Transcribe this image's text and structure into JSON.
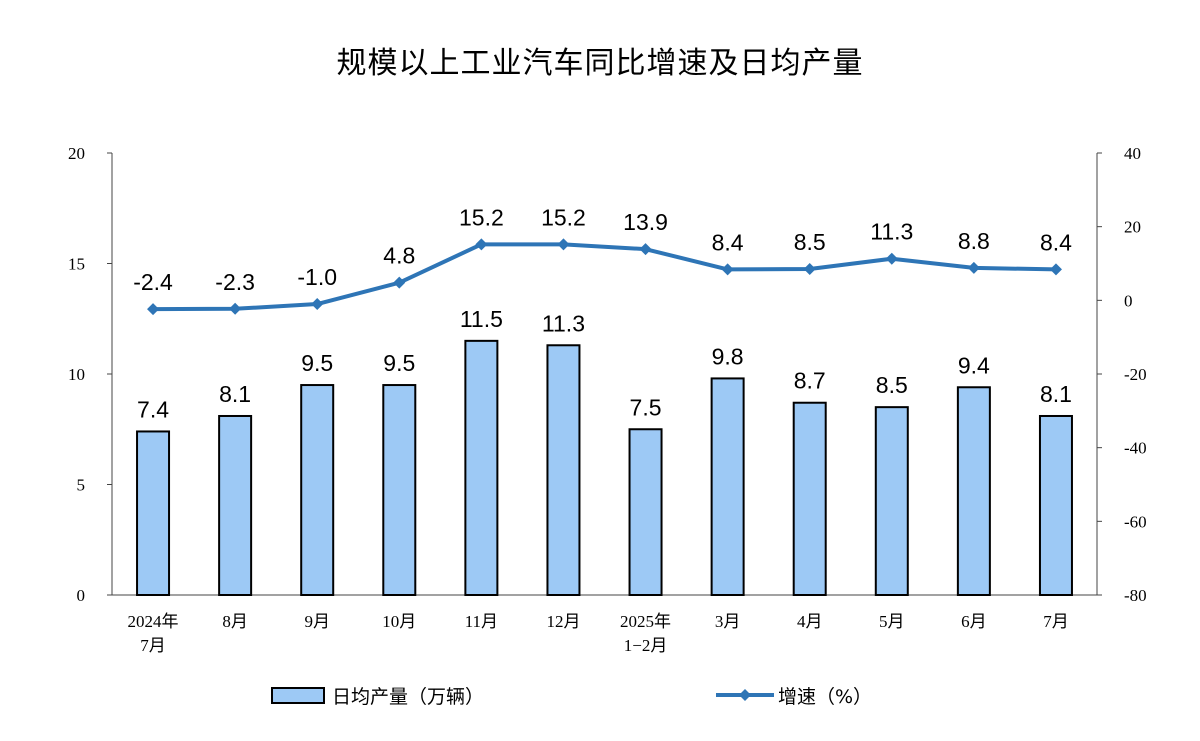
{
  "chart_data": {
    "type": "bar+line",
    "title": "规模以上工业汽车同比增速及日均产量",
    "categories": [
      [
        "2024年",
        "7月"
      ],
      [
        "8月"
      ],
      [
        "9月"
      ],
      [
        "10月"
      ],
      [
        "11月"
      ],
      [
        "12月"
      ],
      [
        "2025年",
        "1−2月"
      ],
      [
        "3月"
      ],
      [
        "4月"
      ],
      [
        "5月"
      ],
      [
        "6月"
      ],
      [
        "7月"
      ]
    ],
    "series": [
      {
        "name": "日均产量（万辆）",
        "type": "bar",
        "axis": "left",
        "values": [
          7.4,
          8.1,
          9.5,
          9.5,
          11.5,
          11.3,
          7.5,
          9.8,
          8.7,
          8.5,
          9.4,
          8.1
        ],
        "labels": [
          "7.4",
          "8.1",
          "9.5",
          "9.5",
          "11.5",
          "11.3",
          "7.5",
          "9.8",
          "8.7",
          "8.5",
          "9.4",
          "8.1"
        ]
      },
      {
        "name": "增速（%）",
        "type": "line",
        "axis": "right",
        "values": [
          -2.4,
          -2.3,
          -1.0,
          4.8,
          15.2,
          15.2,
          13.9,
          8.4,
          8.5,
          11.3,
          8.8,
          8.4
        ],
        "labels": [
          "-2.4",
          "-2.3",
          "-1.0",
          "4.8",
          "15.2",
          "15.2",
          "13.9",
          "8.4",
          "8.5",
          "11.3",
          "8.8",
          "8.4"
        ]
      }
    ],
    "y_left": {
      "min": 0,
      "max": 20,
      "ticks": [
        "0",
        "5",
        "10",
        "15",
        "20"
      ]
    },
    "y_right": {
      "min": -80,
      "max": 40,
      "ticks": [
        "-80",
        "-60",
        "-40",
        "-20",
        "0",
        "20",
        "40"
      ]
    },
    "grid": false,
    "legend_position": "bottom",
    "colors": {
      "bar_fill": "#9dc9f5",
      "bar_stroke": "#000000",
      "line": "#2e75b6"
    }
  }
}
